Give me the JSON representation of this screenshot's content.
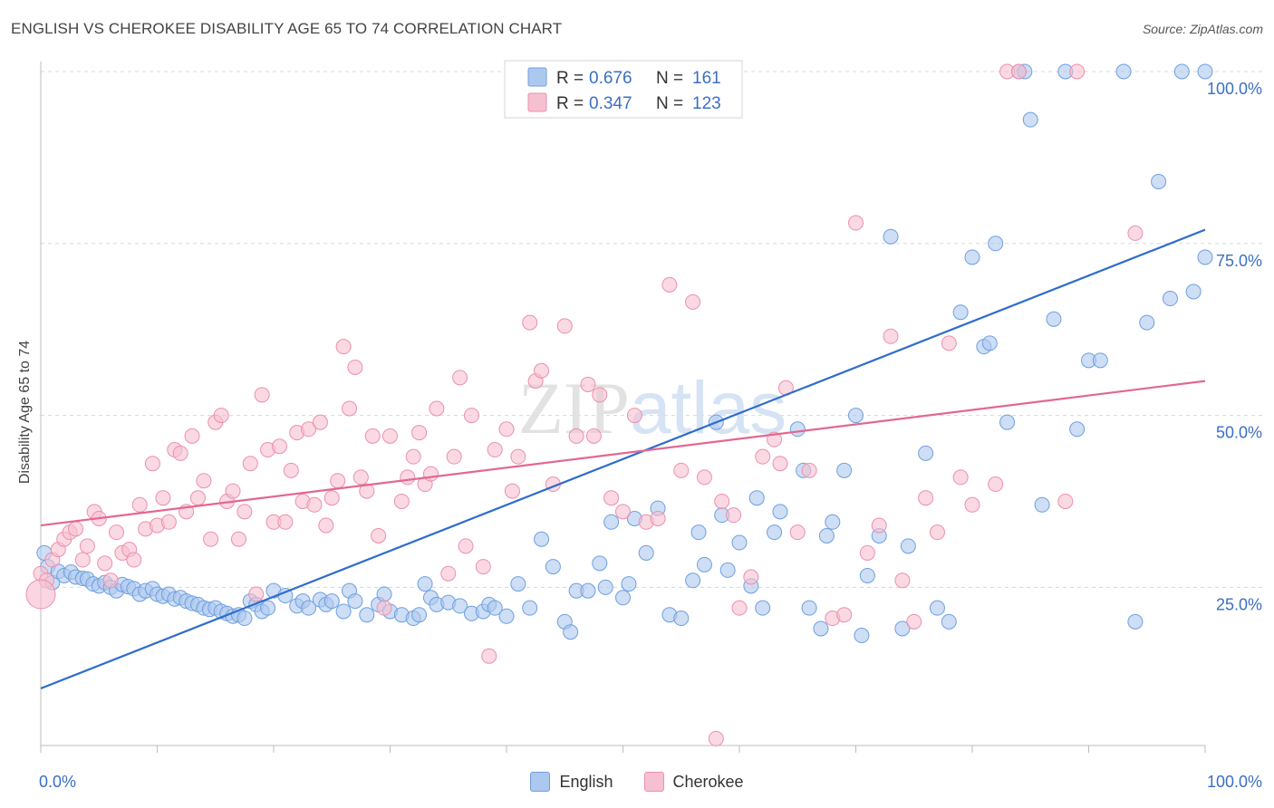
{
  "title": "ENGLISH VS CHEROKEE DISABILITY AGE 65 TO 74 CORRELATION CHART",
  "source": "Source: ZipAtlas.com",
  "watermark": "ZIPatlas",
  "colors": {
    "english_fill": "#adc8ef",
    "english_stroke": "#6e9fe0",
    "english_line": "#2d6ccc",
    "cherokee_fill": "#f6c0d1",
    "cherokee_stroke": "#ec8fae",
    "cherokee_line": "#e2688f",
    "tick_label": "#3a6fc4",
    "grid": "#d8d8d8"
  },
  "legend": {
    "rows": [
      {
        "r_label": "R =",
        "r_value": "0.676",
        "n_label": "N =",
        "n_value": "161"
      },
      {
        "r_label": "R =",
        "r_value": "0.347",
        "n_label": "N =",
        "n_value": "123"
      }
    ]
  },
  "bottom_legend": {
    "english": "English",
    "cherokee": "Cherokee"
  },
  "chart_data": {
    "type": "scatter",
    "title": "ENGLISH VS CHEROKEE DISABILITY AGE 65 TO 74 CORRELATION CHART",
    "xlabel": "",
    "ylabel": "Disability Age 65 to 74",
    "xlim": [
      0,
      100
    ],
    "ylim": [
      2,
      100
    ],
    "x_tick_labels": [
      "0.0%",
      "100.0%"
    ],
    "y_tick_labels": [
      "25.0%",
      "50.0%",
      "75.0%",
      "100.0%"
    ],
    "y_ticks": [
      25,
      50,
      75,
      100
    ],
    "grid": true,
    "legend_position": "top-center",
    "series": [
      {
        "name": "English",
        "r": 0.676,
        "n": 161,
        "trend": [
          [
            0,
            10.3
          ],
          [
            100,
            77.0
          ]
        ],
        "points": [
          [
            0.3,
            30
          ],
          [
            0.6,
            28
          ],
          [
            1,
            25.7
          ],
          [
            1.5,
            27.3
          ],
          [
            2,
            26.7
          ],
          [
            2.6,
            27.2
          ],
          [
            3,
            26.5
          ],
          [
            3.6,
            26.3
          ],
          [
            4,
            26.2
          ],
          [
            4.5,
            25.5
          ],
          [
            5,
            25.2
          ],
          [
            5.5,
            25.7
          ],
          [
            6,
            25
          ],
          [
            6.5,
            24.5
          ],
          [
            7,
            25.4
          ],
          [
            7.5,
            25.1
          ],
          [
            8,
            24.8
          ],
          [
            8.5,
            24
          ],
          [
            9,
            24.5
          ],
          [
            9.6,
            24.8
          ],
          [
            10,
            24
          ],
          [
            10.5,
            23.7
          ],
          [
            11,
            24
          ],
          [
            11.5,
            23.3
          ],
          [
            12,
            23.5
          ],
          [
            12.5,
            23
          ],
          [
            13,
            22.7
          ],
          [
            13.5,
            22.5
          ],
          [
            14,
            22
          ],
          [
            14.5,
            21.8
          ],
          [
            15,
            22
          ],
          [
            15.5,
            21.5
          ],
          [
            16,
            21.2
          ],
          [
            16.5,
            20.8
          ],
          [
            17,
            21
          ],
          [
            17.5,
            20.5
          ],
          [
            18,
            23
          ],
          [
            18.5,
            22.5
          ],
          [
            19,
            21.5
          ],
          [
            19.5,
            22
          ],
          [
            20,
            24.5
          ],
          [
            21,
            23.8
          ],
          [
            22,
            22.3
          ],
          [
            22.5,
            23
          ],
          [
            23,
            22
          ],
          [
            24,
            23.2
          ],
          [
            24.5,
            22.5
          ],
          [
            25,
            23
          ],
          [
            26,
            21.5
          ],
          [
            26.5,
            24.5
          ],
          [
            27,
            23
          ],
          [
            28,
            21
          ],
          [
            29,
            22.5
          ],
          [
            29.5,
            24
          ],
          [
            30,
            21.5
          ],
          [
            31,
            21
          ],
          [
            32,
            20.5
          ],
          [
            32.5,
            21
          ],
          [
            33,
            25.5
          ],
          [
            33.5,
            23.5
          ],
          [
            34,
            22.5
          ],
          [
            35,
            22.8
          ],
          [
            36,
            22.3
          ],
          [
            37,
            21.2
          ],
          [
            38,
            21.5
          ],
          [
            38.5,
            22.5
          ],
          [
            39,
            22
          ],
          [
            40,
            20.8
          ],
          [
            41,
            25.5
          ],
          [
            42,
            22
          ],
          [
            43,
            32
          ],
          [
            44,
            28
          ],
          [
            45,
            20
          ],
          [
            45.5,
            18.5
          ],
          [
            46,
            24.5
          ],
          [
            47,
            24.5
          ],
          [
            48,
            28.5
          ],
          [
            48.5,
            25
          ],
          [
            49,
            34.5
          ],
          [
            50,
            23.5
          ],
          [
            50.5,
            25.5
          ],
          [
            51,
            35
          ],
          [
            52,
            30
          ],
          [
            53,
            36.5
          ],
          [
            54,
            21
          ],
          [
            55,
            20.5
          ],
          [
            56,
            26
          ],
          [
            56.5,
            33
          ],
          [
            57,
            28.3
          ],
          [
            58,
            49
          ],
          [
            58.5,
            35.5
          ],
          [
            59,
            27.5
          ],
          [
            60,
            31.5
          ],
          [
            61,
            25.2
          ],
          [
            61.5,
            38
          ],
          [
            62,
            22
          ],
          [
            63,
            33
          ],
          [
            63.5,
            36
          ],
          [
            65,
            48
          ],
          [
            65.5,
            42
          ],
          [
            66,
            22
          ],
          [
            67,
            19
          ],
          [
            67.5,
            32.5
          ],
          [
            68,
            34.5
          ],
          [
            69,
            42
          ],
          [
            70,
            50
          ],
          [
            70.5,
            18
          ],
          [
            71,
            26.7
          ],
          [
            72,
            32.5
          ],
          [
            73,
            76
          ],
          [
            74,
            19
          ],
          [
            74.5,
            31
          ],
          [
            76,
            44.5
          ],
          [
            77,
            22
          ],
          [
            78,
            20
          ],
          [
            79,
            65
          ],
          [
            80,
            73
          ],
          [
            81,
            60
          ],
          [
            81.5,
            60.5
          ],
          [
            82,
            75
          ],
          [
            83,
            49
          ],
          [
            84,
            100
          ],
          [
            84.5,
            100
          ],
          [
            85,
            93
          ],
          [
            86,
            37
          ],
          [
            87,
            64
          ],
          [
            88,
            100
          ],
          [
            89,
            48
          ],
          [
            90,
            58
          ],
          [
            91,
            58
          ],
          [
            93,
            100
          ],
          [
            94,
            20
          ],
          [
            95,
            63.5
          ],
          [
            96,
            84
          ],
          [
            97,
            67
          ],
          [
            98,
            100
          ],
          [
            99,
            68
          ],
          [
            100,
            73
          ],
          [
            100,
            100
          ]
        ]
      },
      {
        "name": "Cherokee",
        "r": 0.347,
        "n": 123,
        "trend": [
          [
            0,
            34.0
          ],
          [
            100,
            55.0
          ]
        ],
        "points": [
          [
            0,
            27
          ],
          [
            0.5,
            26
          ],
          [
            1,
            29
          ],
          [
            1.5,
            30.5
          ],
          [
            2,
            32
          ],
          [
            2.5,
            33
          ],
          [
            3,
            33.5
          ],
          [
            3.6,
            29
          ],
          [
            4,
            31
          ],
          [
            4.6,
            36
          ],
          [
            5,
            35
          ],
          [
            5.5,
            28.5
          ],
          [
            6,
            26
          ],
          [
            6.5,
            33
          ],
          [
            7,
            30
          ],
          [
            7.6,
            30.5
          ],
          [
            8,
            29
          ],
          [
            8.5,
            37
          ],
          [
            9,
            33.5
          ],
          [
            9.6,
            43
          ],
          [
            10,
            34
          ],
          [
            10.5,
            38
          ],
          [
            11,
            34.5
          ],
          [
            11.5,
            45
          ],
          [
            12,
            44.5
          ],
          [
            12.5,
            36
          ],
          [
            13,
            47
          ],
          [
            13.5,
            38
          ],
          [
            14,
            40.5
          ],
          [
            14.6,
            32
          ],
          [
            15,
            49
          ],
          [
            15.5,
            50
          ],
          [
            16,
            37.5
          ],
          [
            16.5,
            39
          ],
          [
            17,
            32
          ],
          [
            17.5,
            36
          ],
          [
            18,
            43
          ],
          [
            18.5,
            24
          ],
          [
            19,
            53
          ],
          [
            19.5,
            45
          ],
          [
            20,
            34.5
          ],
          [
            20.5,
            45.5
          ],
          [
            21,
            34.5
          ],
          [
            21.5,
            42
          ],
          [
            22,
            47.5
          ],
          [
            22.5,
            37.5
          ],
          [
            23,
            48
          ],
          [
            23.5,
            37
          ],
          [
            24,
            49
          ],
          [
            24.5,
            34
          ],
          [
            25,
            38
          ],
          [
            25.5,
            40.5
          ],
          [
            26,
            60
          ],
          [
            26.5,
            51
          ],
          [
            27,
            57
          ],
          [
            27.5,
            41
          ],
          [
            28,
            39
          ],
          [
            28.5,
            47
          ],
          [
            29,
            32.5
          ],
          [
            29.5,
            22
          ],
          [
            30,
            47
          ],
          [
            31,
            37.5
          ],
          [
            31.5,
            41
          ],
          [
            32,
            44
          ],
          [
            32.5,
            47.5
          ],
          [
            33,
            40
          ],
          [
            33.5,
            41.5
          ],
          [
            34,
            51
          ],
          [
            35,
            27
          ],
          [
            35.5,
            44
          ],
          [
            36,
            55.5
          ],
          [
            36.5,
            31
          ],
          [
            37,
            50
          ],
          [
            38,
            28
          ],
          [
            38.5,
            15
          ],
          [
            39,
            45
          ],
          [
            40,
            48
          ],
          [
            40.5,
            39
          ],
          [
            41,
            44
          ],
          [
            42,
            63.5
          ],
          [
            42.5,
            55
          ],
          [
            43,
            56.5
          ],
          [
            44,
            40
          ],
          [
            45,
            63
          ],
          [
            46,
            47
          ],
          [
            47,
            54.5
          ],
          [
            47.5,
            47
          ],
          [
            48,
            53
          ],
          [
            49,
            38
          ],
          [
            50,
            36
          ],
          [
            51,
            50
          ],
          [
            52,
            34.5
          ],
          [
            53,
            35
          ],
          [
            54,
            69
          ],
          [
            55,
            42
          ],
          [
            56,
            66.5
          ],
          [
            57,
            41
          ],
          [
            58,
            3
          ],
          [
            58.5,
            37.5
          ],
          [
            59.5,
            35.5
          ],
          [
            60,
            22
          ],
          [
            61,
            26.5
          ],
          [
            62,
            44
          ],
          [
            63,
            46.5
          ],
          [
            63.5,
            43
          ],
          [
            64,
            54
          ],
          [
            65,
            33
          ],
          [
            66,
            42
          ],
          [
            68,
            20.5
          ],
          [
            69,
            21
          ],
          [
            70,
            78
          ],
          [
            71,
            30
          ],
          [
            72,
            34
          ],
          [
            73,
            61.5
          ],
          [
            74,
            26
          ],
          [
            75,
            20
          ],
          [
            76,
            38
          ],
          [
            77,
            33
          ],
          [
            78,
            60.5
          ],
          [
            79,
            41
          ],
          [
            80,
            37
          ],
          [
            82,
            40
          ],
          [
            83,
            100
          ],
          [
            84,
            100
          ],
          [
            88,
            37.5
          ],
          [
            89,
            100
          ],
          [
            94,
            76.5
          ]
        ]
      }
    ]
  }
}
